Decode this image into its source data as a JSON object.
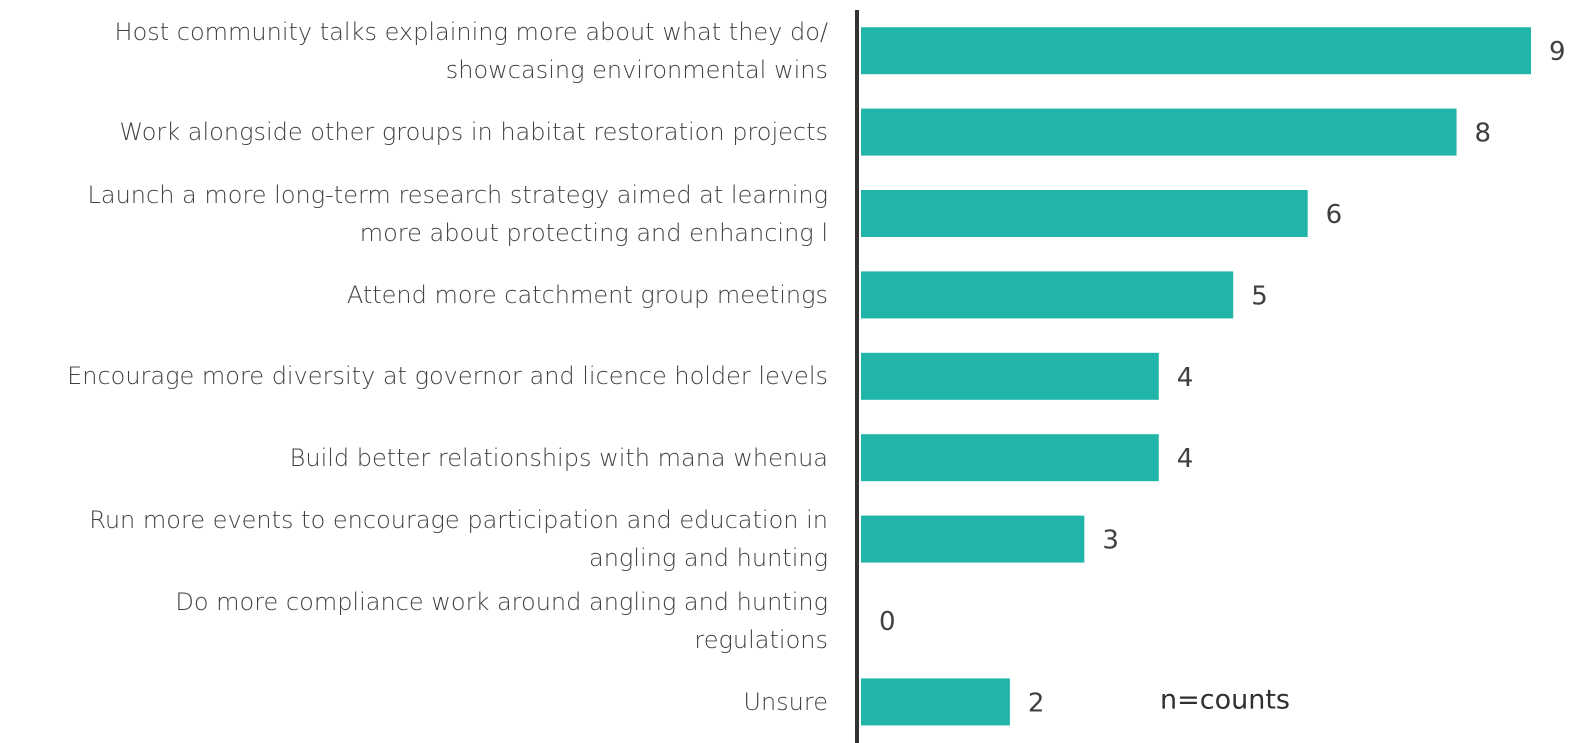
{
  "chart_data": {
    "type": "barh",
    "categories": [
      "Host community talks explaining more about what they do/\nshowcasing environmental wins",
      "Work alongside other groups in habitat restoration projects",
      "Launch a more long-term research strategy aimed at learning\nmore about protecting and enhancing l",
      "Attend more catchment group meetings",
      "Encourage more diversity at governor and licence holder levels",
      "Build better relationships with mana whenua",
      "Run more events to encourage participation and education in\nangling and hunting",
      "Do more compliance work around  angling and hunting\nregulations",
      "Unsure"
    ],
    "values": [
      9,
      8,
      6,
      5,
      4,
      4,
      3,
      0,
      2
    ],
    "color": "#20b5a8",
    "annotation": "n=counts"
  }
}
